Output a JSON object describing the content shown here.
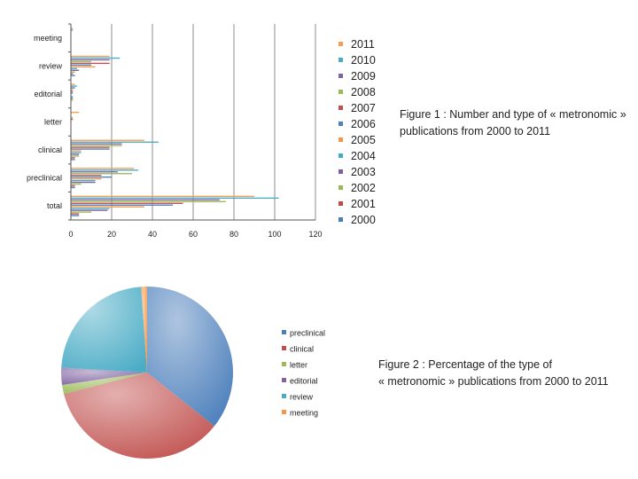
{
  "chart_data": [
    {
      "type": "bar",
      "orientation": "horizontal",
      "categories": [
        "total",
        "preclinical",
        "clinical",
        "letter",
        "editorial",
        "review",
        "meeting"
      ],
      "series": [
        {
          "name": "2000",
          "color": "#4a7ebb",
          "values": [
            4,
            2,
            2,
            0,
            0,
            2,
            0
          ]
        },
        {
          "name": "2001",
          "color": "#be4b48",
          "values": [
            4,
            2,
            2,
            0,
            0,
            1,
            0
          ]
        },
        {
          "name": "2002",
          "color": "#98b954",
          "values": [
            10,
            5,
            4,
            0,
            1,
            2,
            0
          ]
        },
        {
          "name": "2003",
          "color": "#7d60a0",
          "values": [
            18,
            12,
            4,
            0,
            1,
            4,
            0
          ]
        },
        {
          "name": "2004",
          "color": "#46aac5",
          "values": [
            19,
            12,
            5,
            0,
            1,
            3,
            0
          ]
        },
        {
          "name": "2005",
          "color": "#f79646",
          "values": [
            36,
            15,
            5,
            0,
            0,
            12,
            0
          ]
        },
        {
          "name": "2006",
          "color": "#4f81bd",
          "values": [
            50,
            20,
            19,
            0,
            1,
            10,
            0
          ]
        },
        {
          "name": "2007",
          "color": "#c0504d",
          "values": [
            55,
            15,
            19,
            1,
            1,
            19,
            0
          ]
        },
        {
          "name": "2008",
          "color": "#9bbb59",
          "values": [
            76,
            30,
            25,
            1,
            1,
            10,
            0
          ]
        },
        {
          "name": "2009",
          "color": "#8064a2",
          "values": [
            73,
            23,
            25,
            0,
            2,
            19,
            0
          ]
        },
        {
          "name": "2010",
          "color": "#4bacc6",
          "values": [
            102,
            33,
            43,
            0,
            3,
            24,
            1
          ]
        },
        {
          "name": "2011",
          "color": "#f59d56",
          "values": [
            90,
            31,
            36,
            4,
            2,
            19,
            1
          ]
        }
      ],
      "xlim": [
        0,
        120
      ],
      "xticks": [
        0,
        20,
        40,
        60,
        80,
        100,
        120
      ],
      "grid": true,
      "legend_position": "right"
    },
    {
      "type": "pie",
      "labels": [
        "preclinical",
        "clinical",
        "letter",
        "editorial",
        "review",
        "meeting"
      ],
      "values": [
        35.7,
        35.3,
        1.7,
        3.2,
        23.0,
        1.1
      ],
      "colors": [
        "#4a7ebb",
        "#c0504d",
        "#9bbb59",
        "#8064a2",
        "#4bacc6",
        "#f79646"
      ],
      "legend_position": "right"
    }
  ],
  "captions": {
    "figure1_line1": "Figure 1 : Number and type of « metronomic »",
    "figure1_line2": "publications from 2000 to 2011",
    "figure2_line1": "Figure 2 : Percentage of the type of",
    "figure2_line2": "« metronomic » publications from 2000 to 2011"
  }
}
